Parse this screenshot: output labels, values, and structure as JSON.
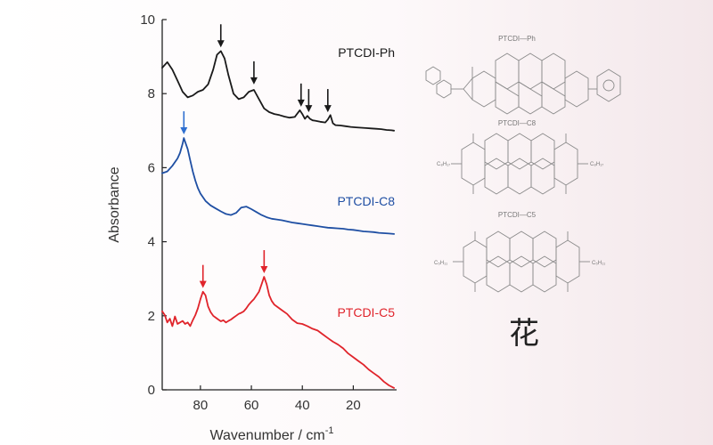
{
  "chart_data": {
    "type": "line",
    "xlabel": "Wavenumber / cm",
    "xlabel_superscript": "-1",
    "ylabel": "Absorbance",
    "xlim": [
      95,
      3
    ],
    "ylim": [
      0,
      10
    ],
    "x_ticks": [
      80,
      60,
      40,
      20
    ],
    "y_ticks": [
      0,
      2,
      4,
      6,
      8,
      10
    ],
    "grid": false,
    "legend": "inline labels right of each trace",
    "series": [
      {
        "name": "PTCDI-Ph",
        "color": "#1a1a1a",
        "x": [
          95,
          93,
          91,
          89,
          87,
          85,
          83,
          81,
          79,
          77,
          75,
          73.5,
          72,
          70.5,
          69,
          67,
          65,
          63,
          61,
          59,
          57,
          55,
          53,
          51,
          49,
          47,
          45,
          43,
          41,
          40,
          39,
          38,
          37,
          36,
          35,
          33,
          31,
          30,
          29,
          28,
          27,
          25,
          23,
          21,
          19,
          17,
          15,
          13,
          11,
          9,
          7,
          5,
          4
        ],
        "y": [
          8.7,
          8.85,
          8.65,
          8.35,
          8.05,
          7.9,
          7.95,
          8.05,
          8.1,
          8.25,
          8.65,
          9.05,
          9.15,
          8.95,
          8.5,
          8.0,
          7.85,
          7.9,
          8.05,
          8.1,
          7.85,
          7.6,
          7.5,
          7.45,
          7.42,
          7.38,
          7.35,
          7.37,
          7.55,
          7.45,
          7.32,
          7.4,
          7.32,
          7.28,
          7.27,
          7.24,
          7.22,
          7.3,
          7.42,
          7.2,
          7.15,
          7.14,
          7.12,
          7.1,
          7.09,
          7.08,
          7.07,
          7.06,
          7.05,
          7.04,
          7.02,
          7.01,
          7.0
        ]
      },
      {
        "name": "PTCDI-C8",
        "color": "#1f4fa3",
        "x": [
          95,
          93,
          91,
          89,
          88,
          87,
          86.5,
          86,
          85,
          84,
          83,
          82,
          81,
          80,
          78,
          76,
          74,
          72,
          70,
          68,
          66,
          64,
          62,
          60,
          58,
          56,
          54,
          52,
          50,
          48,
          46,
          44,
          42,
          40,
          38,
          36,
          34,
          32,
          30,
          28,
          26,
          24,
          22,
          20,
          18,
          16,
          14,
          12,
          10,
          8,
          6,
          4
        ],
        "y": [
          5.85,
          5.9,
          6.05,
          6.25,
          6.4,
          6.65,
          6.8,
          6.7,
          6.5,
          6.2,
          5.9,
          5.65,
          5.45,
          5.3,
          5.1,
          4.98,
          4.9,
          4.82,
          4.75,
          4.72,
          4.78,
          4.92,
          4.95,
          4.88,
          4.8,
          4.72,
          4.66,
          4.62,
          4.6,
          4.58,
          4.55,
          4.52,
          4.5,
          4.48,
          4.46,
          4.44,
          4.42,
          4.4,
          4.38,
          4.37,
          4.36,
          4.35,
          4.33,
          4.32,
          4.3,
          4.28,
          4.27,
          4.26,
          4.24,
          4.23,
          4.22,
          4.21
        ]
      },
      {
        "name": "PTCDI-C5",
        "color": "#e0242b",
        "x": [
          95,
          94,
          93,
          92,
          91,
          90,
          89,
          88,
          87,
          86,
          85,
          84,
          83,
          82,
          81,
          80,
          79,
          78,
          77,
          76,
          75,
          74,
          73,
          72,
          71,
          70,
          69,
          68,
          67,
          66,
          65,
          64,
          63,
          62,
          61,
          60,
          59,
          58,
          57,
          56,
          55,
          54,
          53,
          52,
          51,
          50,
          48,
          46,
          44,
          42,
          40,
          38,
          36,
          34,
          32,
          30,
          28,
          26,
          24,
          22,
          20,
          18,
          16,
          14,
          12,
          10,
          8,
          6,
          4
        ],
        "y": [
          2.12,
          2.02,
          1.82,
          1.92,
          1.72,
          1.98,
          1.78,
          1.82,
          1.86,
          1.78,
          1.82,
          1.72,
          1.88,
          2.02,
          2.2,
          2.45,
          2.65,
          2.55,
          2.25,
          2.1,
          2.0,
          1.95,
          1.9,
          1.85,
          1.88,
          1.82,
          1.86,
          1.9,
          1.95,
          2.0,
          2.05,
          2.08,
          2.12,
          2.2,
          2.3,
          2.38,
          2.45,
          2.55,
          2.65,
          2.85,
          3.05,
          2.85,
          2.55,
          2.4,
          2.3,
          2.25,
          2.15,
          2.05,
          1.9,
          1.8,
          1.78,
          1.72,
          1.65,
          1.6,
          1.5,
          1.4,
          1.3,
          1.22,
          1.12,
          0.98,
          0.88,
          0.78,
          0.68,
          0.55,
          0.45,
          0.35,
          0.22,
          0.12,
          0.05
        ]
      }
    ],
    "arrows": [
      {
        "series": "PTCDI-Ph",
        "x": 72,
        "y": 9.2,
        "color": "#1a1a1a"
      },
      {
        "series": "PTCDI-Ph",
        "x": 59,
        "y": 8.2,
        "color": "#1a1a1a"
      },
      {
        "series": "PTCDI-Ph",
        "x": 40.5,
        "y": 7.6,
        "color": "#1a1a1a"
      },
      {
        "series": "PTCDI-Ph",
        "x": 37.5,
        "y": 7.45,
        "color": "#1a1a1a"
      },
      {
        "series": "PTCDI-Ph",
        "x": 30,
        "y": 7.45,
        "color": "#1a1a1a"
      },
      {
        "series": "PTCDI-C8",
        "x": 86.5,
        "y": 6.85,
        "color": "#2f6fd0"
      },
      {
        "series": "PTCDI-C5",
        "x": 79,
        "y": 2.7,
        "color": "#e0242b"
      },
      {
        "series": "PTCDI-C5",
        "x": 55,
        "y": 3.1,
        "color": "#e0242b"
      }
    ]
  },
  "molecules": [
    {
      "name": "PTCDI—Ph",
      "left_sub": "",
      "right_sub": ""
    },
    {
      "name": "PTCDI—C8",
      "left_sub": "C₈H₁₇",
      "right_sub": "C₈H₁₇"
    },
    {
      "name": "PTCDI—C5",
      "left_sub": "C₅H₁₁",
      "right_sub": "C₅H₁₁"
    }
  ],
  "caption_char": "花"
}
